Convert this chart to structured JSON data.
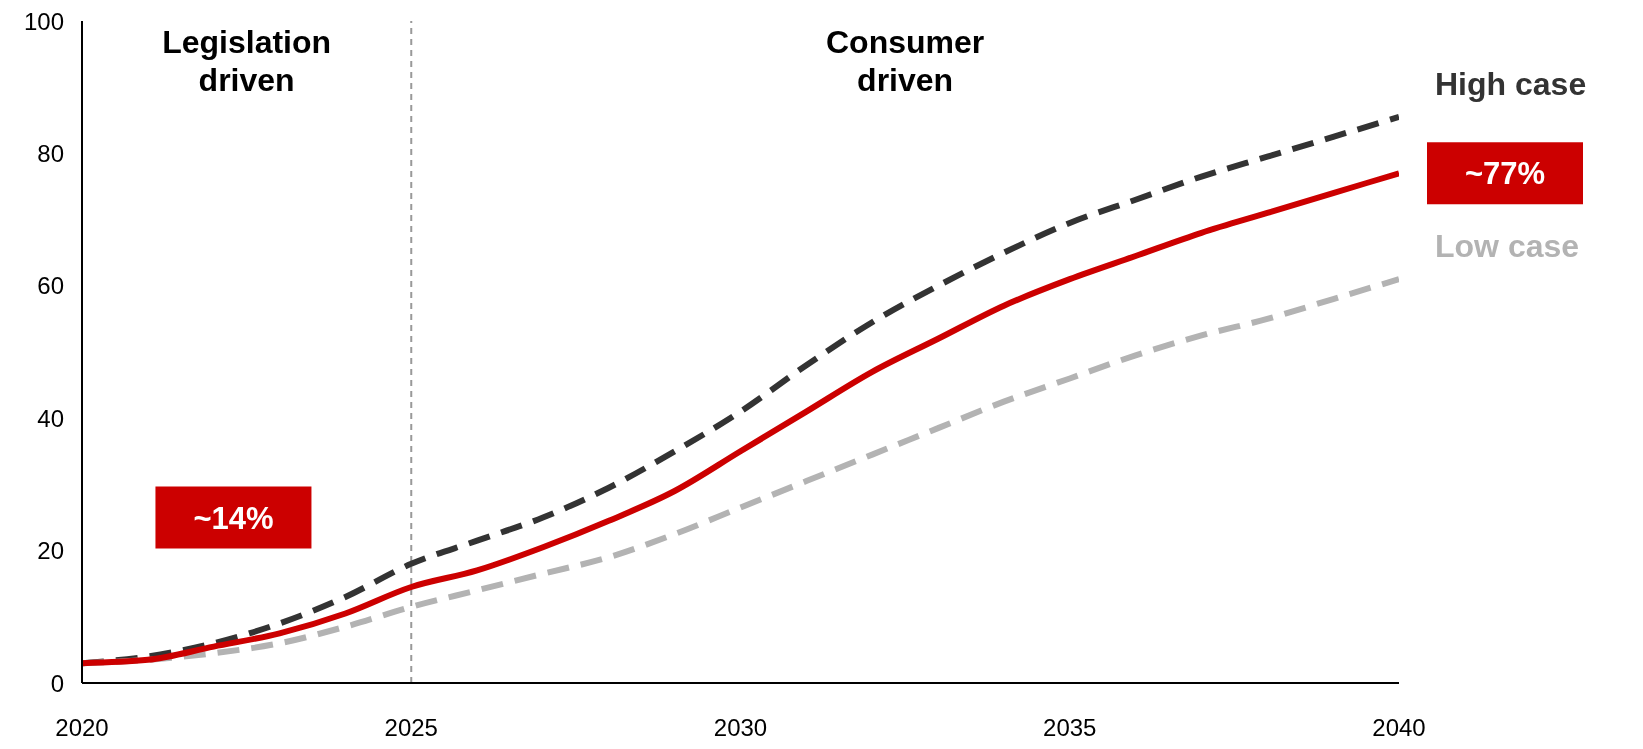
{
  "chart_data": {
    "type": "line",
    "x": [
      2020,
      2021,
      2022,
      2023,
      2024,
      2025,
      2026,
      2027,
      2028,
      2029,
      2030,
      2031,
      2032,
      2033,
      2034,
      2035,
      2036,
      2037,
      2038,
      2039,
      2040
    ],
    "series": [
      {
        "name": "High case",
        "color": "#333333",
        "line_style": "dashed",
        "values": [
          3,
          4,
          6,
          9,
          13,
          18,
          21.5,
          25,
          29.5,
          35,
          41,
          48,
          54.5,
          60,
          65,
          69.5,
          73,
          76.5,
          79.5,
          82.5,
          85.5
        ]
      },
      {
        "name": "Low case",
        "color": "#b3b3b3",
        "line_style": "dashed",
        "values": [
          3,
          3.5,
          4.5,
          6,
          8.5,
          11.5,
          14,
          16.5,
          19,
          22.5,
          26.5,
          30.5,
          34.5,
          38.5,
          42.5,
          46,
          49.5,
          52.5,
          55,
          58,
          61
        ]
      },
      {
        "color": "#cc0000",
        "line_style": "solid",
        "values": [
          3,
          3.5,
          5.5,
          7.5,
          10.5,
          14.5,
          17,
          20.5,
          24.5,
          29,
          35,
          41,
          47,
          52,
          57,
          61,
          64.5,
          68,
          71,
          74,
          77
        ]
      }
    ],
    "xlim": [
      2020,
      2040
    ],
    "xticks": [
      2020,
      2025,
      2030,
      2035,
      2040
    ],
    "ylim": [
      0,
      100
    ],
    "yticks": [
      0,
      20,
      40,
      60,
      80,
      100
    ],
    "ref_lines": [
      {
        "axis": "x",
        "value": 2025,
        "color": "#999999",
        "line_style": "dashed"
      }
    ],
    "annotations": [
      "Legislation driven",
      "Consumer driven",
      "~14%",
      "~77%"
    ]
  }
}
